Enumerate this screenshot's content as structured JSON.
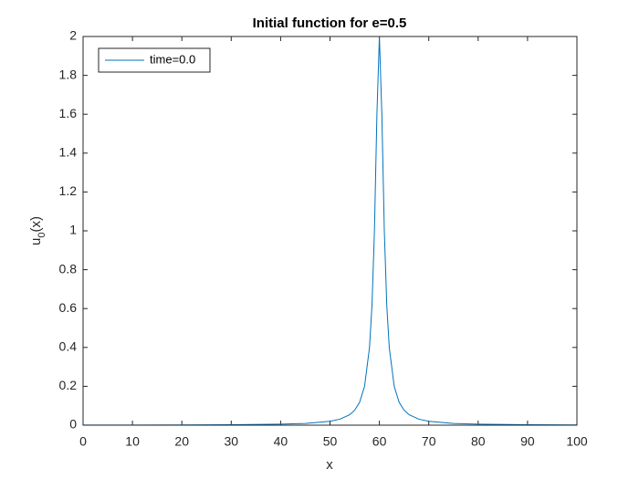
{
  "chart_data": {
    "type": "line",
    "title": "Initial function for e=0.5",
    "xlabel": "x",
    "ylabel": [
      "u",
      "0",
      "(x)"
    ],
    "x": [
      0,
      10,
      20,
      30,
      40,
      45,
      50,
      52,
      54,
      55,
      56,
      57,
      58,
      58.5,
      59,
      59.5,
      60,
      60.5,
      61,
      61.5,
      62,
      63,
      64,
      65,
      66,
      68,
      70,
      75,
      80,
      90,
      100
    ],
    "series": [
      {
        "name": "time=0.0",
        "color": "#0072BD",
        "values": [
          0.0006,
          0.0008,
          0.0012,
          0.0022,
          0.005,
          0.0088,
          0.0198,
          0.0308,
          0.054,
          0.077,
          0.118,
          0.2,
          0.4,
          0.615,
          1.0,
          1.6,
          2.0,
          1.6,
          1.0,
          0.615,
          0.4,
          0.2,
          0.118,
          0.077,
          0.054,
          0.0308,
          0.0198,
          0.0088,
          0.005,
          0.0022,
          0.0012
        ]
      }
    ],
    "xlim": [
      0,
      100
    ],
    "xticks": [
      0,
      10,
      20,
      30,
      40,
      50,
      60,
      70,
      80,
      90,
      100
    ],
    "ylim": [
      0,
      2
    ],
    "yticks": [
      0,
      0.2,
      0.4,
      0.6,
      0.8,
      1,
      1.2,
      1.4,
      1.6,
      1.8,
      2
    ],
    "legend": "upper left",
    "grid": false
  }
}
